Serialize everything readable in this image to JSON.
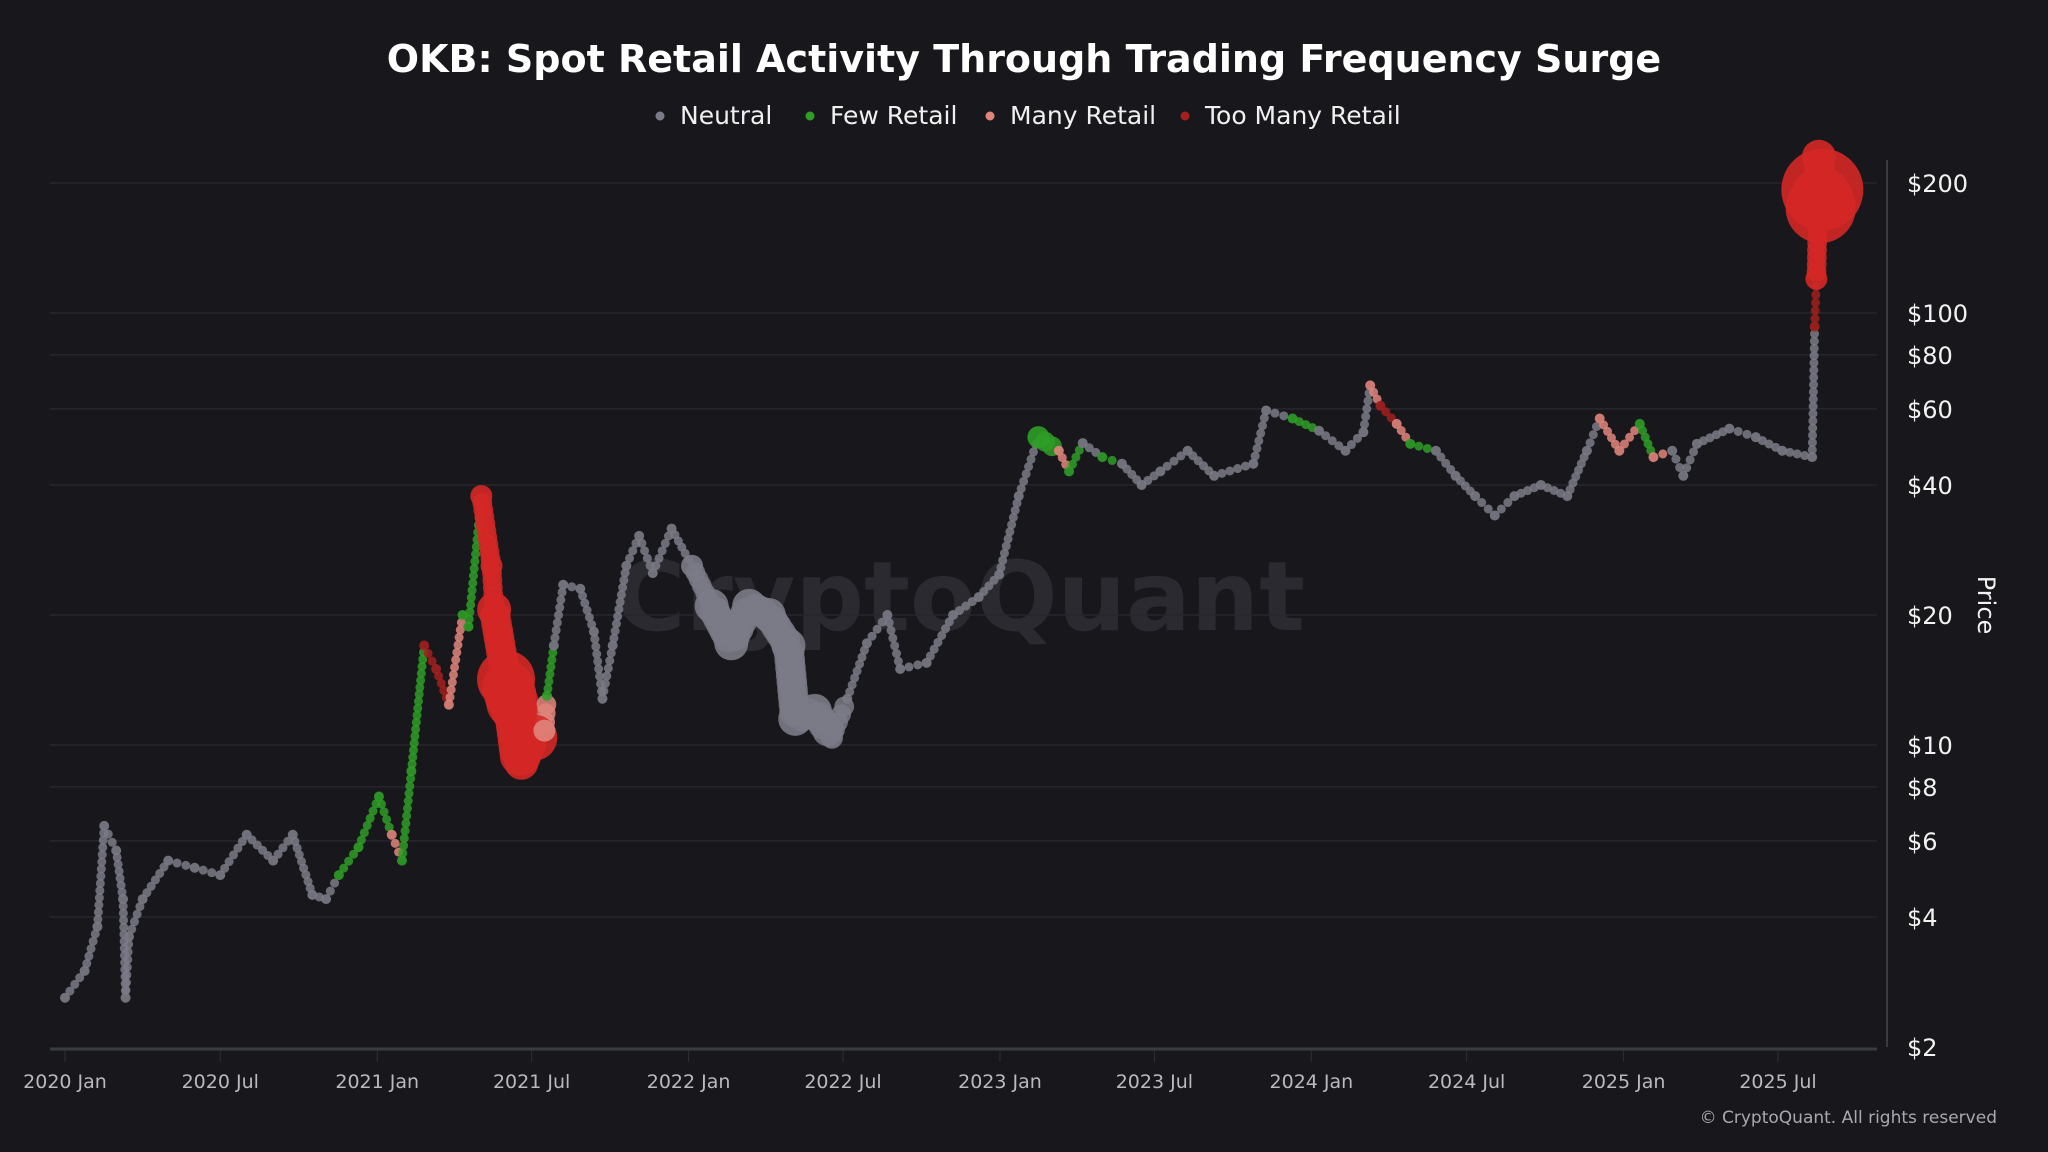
{
  "chart_data": {
    "type": "scatter",
    "title": "OKB: Spot Retail Activity Through Trading Frequency Surge",
    "ylabel": "Price",
    "y_scale": "log",
    "ylim": [
      2,
      240
    ],
    "xlim": [
      "2020-01-01",
      "2025-09-10"
    ],
    "grid": true,
    "legend_position": "top",
    "y_ticks": [
      {
        "value": 200,
        "label": "$200"
      },
      {
        "value": 100,
        "label": "$100"
      },
      {
        "value": 80,
        "label": "$80"
      },
      {
        "value": 60,
        "label": "$60"
      },
      {
        "value": 40,
        "label": "$40"
      },
      {
        "value": 20,
        "label": "$20"
      },
      {
        "value": 10,
        "label": "$10"
      },
      {
        "value": 8,
        "label": "$8"
      },
      {
        "value": 6,
        "label": "$6"
      },
      {
        "value": 4,
        "label": "$4"
      },
      {
        "value": 2,
        "label": "$2"
      }
    ],
    "x_ticks": [
      {
        "date": "2020-01-01",
        "label": "2020 Jan"
      },
      {
        "date": "2020-07-01",
        "label": "2020 Jul"
      },
      {
        "date": "2021-01-01",
        "label": "2021 Jan"
      },
      {
        "date": "2021-07-01",
        "label": "2021 Jul"
      },
      {
        "date": "2022-01-01",
        "label": "2022 Jan"
      },
      {
        "date": "2022-07-01",
        "label": "2022 Jul"
      },
      {
        "date": "2023-01-01",
        "label": "2023 Jan"
      },
      {
        "date": "2023-07-01",
        "label": "2023 Jul"
      },
      {
        "date": "2024-01-01",
        "label": "2024 Jan"
      },
      {
        "date": "2024-07-01",
        "label": "2024 Jul"
      },
      {
        "date": "2025-01-01",
        "label": "2025 Jan"
      },
      {
        "date": "2025-07-01",
        "label": "2025 Jul"
      }
    ],
    "categories": [
      {
        "key": "N",
        "name": "Neutral",
        "color": "#7b7b87"
      },
      {
        "key": "F",
        "name": "Few Retail",
        "color": "#2f9e27"
      },
      {
        "key": "M",
        "name": "Many Retail",
        "color": "#e0857b"
      },
      {
        "key": "T",
        "name": "Too Many Retail",
        "color": "#a3201f"
      }
    ],
    "surge_color": "#d42826",
    "point_fields": [
      "date",
      "price",
      "category",
      "relative_size"
    ],
    "points": [
      [
        "2020-01-01",
        2.6,
        "N",
        1
      ],
      [
        "2020-01-24",
        3.0,
        "N",
        1
      ],
      [
        "2020-02-08",
        3.8,
        "N",
        1
      ],
      [
        "2020-02-16",
        6.5,
        "N",
        1
      ],
      [
        "2020-03-01",
        5.7,
        "N",
        1
      ],
      [
        "2020-03-09",
        4.4,
        "N",
        1
      ],
      [
        "2020-03-12",
        2.6,
        "N",
        1
      ],
      [
        "2020-03-16",
        3.6,
        "N",
        1
      ],
      [
        "2020-04-01",
        4.4,
        "N",
        1
      ],
      [
        "2020-05-01",
        5.4,
        "N",
        1
      ],
      [
        "2020-06-01",
        5.2,
        "N",
        1
      ],
      [
        "2020-07-01",
        5.0,
        "N",
        1
      ],
      [
        "2020-08-01",
        6.2,
        "N",
        1
      ],
      [
        "2020-09-01",
        5.4,
        "N",
        1
      ],
      [
        "2020-09-24",
        6.2,
        "N",
        1
      ],
      [
        "2020-10-17",
        4.5,
        "N",
        1
      ],
      [
        "2020-11-02",
        4.4,
        "N",
        1
      ],
      [
        "2020-11-17",
        5.0,
        "F",
        1
      ],
      [
        "2020-12-10",
        5.8,
        "F",
        1
      ],
      [
        "2021-01-03",
        7.6,
        "F",
        1
      ],
      [
        "2021-01-18",
        6.2,
        "M",
        1
      ],
      [
        "2021-01-30",
        5.4,
        "F",
        1
      ],
      [
        "2021-02-10",
        8.7,
        "F",
        1
      ],
      [
        "2021-02-25",
        17.0,
        "T",
        1
      ],
      [
        "2021-03-11",
        15.0,
        "T",
        1
      ],
      [
        "2021-03-26",
        12.4,
        "M",
        1
      ],
      [
        "2021-04-11",
        20.0,
        "F",
        1
      ],
      [
        "2021-04-18",
        18.8,
        "F",
        1
      ],
      [
        "2021-05-03",
        37.7,
        "T",
        2
      ],
      [
        "2021-05-15",
        26.0,
        "T",
        2
      ],
      [
        "2021-05-18",
        20.6,
        "T",
        3
      ],
      [
        "2021-06-01",
        14.2,
        "T",
        5
      ],
      [
        "2021-06-11",
        12.0,
        "T",
        4
      ],
      [
        "2021-06-19",
        9.1,
        "T",
        3
      ],
      [
        "2021-07-04",
        10.4,
        "T",
        4
      ],
      [
        "2021-07-16",
        10.8,
        "M",
        2
      ],
      [
        "2021-07-19",
        13.0,
        "F",
        1
      ],
      [
        "2021-07-27",
        17.0,
        "N",
        1
      ],
      [
        "2021-08-07",
        23.5,
        "N",
        1
      ],
      [
        "2021-08-27",
        23.0,
        "N",
        1
      ],
      [
        "2021-09-12",
        18.3,
        "N",
        1
      ],
      [
        "2021-09-22",
        12.8,
        "N",
        1
      ],
      [
        "2021-10-04",
        17.0,
        "N",
        1
      ],
      [
        "2021-10-20",
        26.0,
        "N",
        1
      ],
      [
        "2021-11-04",
        30.5,
        "N",
        1
      ],
      [
        "2021-11-20",
        25.0,
        "N",
        1
      ],
      [
        "2021-12-12",
        31.7,
        "N",
        1
      ],
      [
        "2022-01-05",
        26.0,
        "N",
        2
      ],
      [
        "2022-01-28",
        21.0,
        "N",
        3
      ],
      [
        "2022-02-20",
        17.2,
        "N",
        3
      ],
      [
        "2022-03-13",
        21.0,
        "N",
        3
      ],
      [
        "2022-04-05",
        20.0,
        "N",
        3
      ],
      [
        "2022-04-28",
        17.0,
        "N",
        3
      ],
      [
        "2022-05-06",
        11.5,
        "N",
        3
      ],
      [
        "2022-05-29",
        12.0,
        "N",
        3
      ],
      [
        "2022-06-18",
        10.4,
        "N",
        2
      ],
      [
        "2022-07-06",
        12.8,
        "N",
        1
      ],
      [
        "2022-07-29",
        17.2,
        "N",
        1
      ],
      [
        "2022-08-22",
        20.0,
        "N",
        1
      ],
      [
        "2022-09-06",
        15.0,
        "N",
        1
      ],
      [
        "2022-10-07",
        15.5,
        "N",
        1
      ],
      [
        "2022-11-07",
        20.0,
        "N",
        1
      ],
      [
        "2022-12-07",
        22.0,
        "N",
        1
      ],
      [
        "2022-12-31",
        24.8,
        "N",
        1
      ],
      [
        "2023-01-23",
        37.7,
        "N",
        1
      ],
      [
        "2023-02-15",
        51.6,
        "F",
        2
      ],
      [
        "2023-03-11",
        48.0,
        "M",
        1
      ],
      [
        "2023-03-23",
        43.0,
        "F",
        1
      ],
      [
        "2023-04-08",
        50.0,
        "N",
        1
      ],
      [
        "2023-05-01",
        46.4,
        "F",
        1
      ],
      [
        "2023-05-24",
        44.8,
        "N",
        1
      ],
      [
        "2023-06-16",
        40.0,
        "N",
        1
      ],
      [
        "2023-07-08",
        43.0,
        "N",
        1
      ],
      [
        "2023-08-09",
        48.0,
        "N",
        1
      ],
      [
        "2023-09-09",
        42.0,
        "N",
        1
      ],
      [
        "2023-10-25",
        44.8,
        "N",
        1
      ],
      [
        "2023-11-09",
        59.5,
        "N",
        1
      ],
      [
        "2023-12-10",
        57.0,
        "F",
        1
      ],
      [
        "2024-01-10",
        53.4,
        "N",
        1
      ],
      [
        "2024-02-10",
        48.0,
        "N",
        1
      ],
      [
        "2024-03-02",
        53.0,
        "N",
        1
      ],
      [
        "2024-03-10",
        68.0,
        "M",
        1
      ],
      [
        "2024-03-22",
        61.0,
        "T",
        1
      ],
      [
        "2024-04-10",
        55.4,
        "M",
        1
      ],
      [
        "2024-04-26",
        49.8,
        "F",
        1
      ],
      [
        "2024-05-26",
        48.0,
        "N",
        1
      ],
      [
        "2024-06-18",
        42.0,
        "N",
        1
      ],
      [
        "2024-07-11",
        37.7,
        "N",
        1
      ],
      [
        "2024-08-03",
        34.0,
        "N",
        1
      ],
      [
        "2024-08-26",
        37.7,
        "N",
        1
      ],
      [
        "2024-09-26",
        40.0,
        "N",
        1
      ],
      [
        "2024-10-27",
        37.7,
        "N",
        1
      ],
      [
        "2024-11-19",
        48.0,
        "N",
        1
      ],
      [
        "2024-12-04",
        57.0,
        "M",
        1
      ],
      [
        "2024-12-27",
        48.0,
        "M",
        1
      ],
      [
        "2025-01-20",
        55.4,
        "F",
        1
      ],
      [
        "2025-02-05",
        46.4,
        "M",
        1
      ],
      [
        "2025-02-27",
        48.0,
        "N",
        1
      ],
      [
        "2025-03-12",
        42.0,
        "N",
        1
      ],
      [
        "2025-03-28",
        49.8,
        "N",
        1
      ],
      [
        "2025-05-05",
        54.0,
        "N",
        1
      ],
      [
        "2025-06-05",
        51.6,
        "N",
        1
      ],
      [
        "2025-07-06",
        48.0,
        "N",
        1
      ],
      [
        "2025-08-10",
        46.4,
        "N",
        1
      ],
      [
        "2025-08-13",
        93.0,
        "T",
        1
      ],
      [
        "2025-08-15",
        120.0,
        "T",
        2
      ],
      [
        "2025-08-18",
        230.0,
        "T",
        3
      ],
      [
        "2025-08-20",
        175.0,
        "T",
        6
      ],
      [
        "2025-08-22",
        193.0,
        "T",
        7
      ]
    ]
  },
  "watermark": "CryptoQuant",
  "footer": "© CryptoQuant. All rights reserved"
}
